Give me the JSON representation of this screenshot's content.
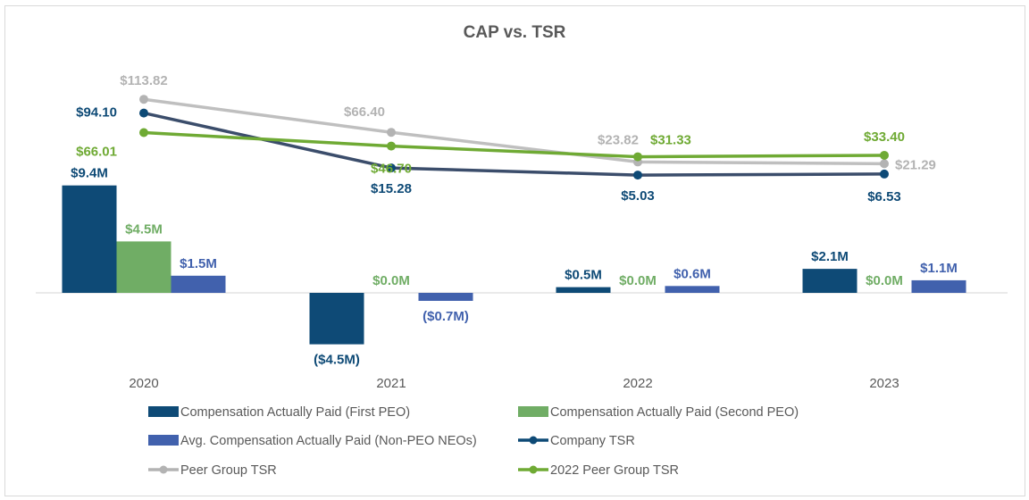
{
  "chart_data": {
    "type": "bar",
    "title": "CAP vs. TSR",
    "categories": [
      "2020",
      "2021",
      "2022",
      "2023"
    ],
    "xlabel": "",
    "ylabel": "",
    "grid": false,
    "legend_position": "bottom",
    "bar_series": [
      {
        "name": "Compensation Actually Paid (First PEO)",
        "color": "#0e4a76",
        "values": [
          9.4,
          -4.5,
          0.5,
          2.1
        ],
        "labels": [
          "$9.4M",
          "($4.5M)",
          "$0.5M",
          "$2.1M"
        ],
        "units": "$M"
      },
      {
        "name": "Compensation Actually Paid (Second PEO)",
        "color": "#70ad65",
        "values": [
          4.5,
          0.0,
          0.0,
          0.0
        ],
        "labels": [
          "$4.5M",
          "$0.0M",
          "$0.0M",
          "$0.0M"
        ],
        "units": "$M"
      },
      {
        "name": "Avg. Compensation Actually Paid (Non-PEO NEOs)",
        "color": "#4161ad",
        "values": [
          1.5,
          -0.7,
          0.6,
          1.1
        ],
        "labels": [
          "$1.5M",
          "($0.7M)",
          "$0.6M",
          "$1.1M"
        ],
        "units": "$M"
      }
    ],
    "line_series": [
      {
        "name": "Company TSR",
        "color": "#0e4a76",
        "line_color": "#3b4d6b",
        "values": [
          94.1,
          15.28,
          5.03,
          6.53
        ],
        "labels": [
          "$94.10",
          "$15.28",
          "$5.03",
          "$6.53"
        ]
      },
      {
        "name": "Peer Group TSR",
        "color": "#b3b3b3",
        "line_color": "#bfbfbf",
        "values": [
          113.82,
          66.4,
          23.82,
          21.29
        ],
        "labels": [
          "$113.82",
          "$66.40",
          "$23.82",
          "$21.29"
        ]
      },
      {
        "name": "2022 Peer Group TSR",
        "color": "#6faa34",
        "line_color": "#6faa34",
        "values": [
          66.01,
          46.7,
          31.33,
          33.4
        ],
        "labels": [
          "$66.01",
          "$46.70",
          "$31.33",
          "$33.40"
        ]
      }
    ],
    "legend": [
      {
        "name": "Compensation Actually Paid (First PEO)",
        "kind": "bar",
        "color": "#0e4a76"
      },
      {
        "name": "Compensation Actually Paid (Second PEO)",
        "kind": "bar",
        "color": "#70ad65"
      },
      {
        "name": "Avg. Compensation Actually Paid (Non-PEO NEOs)",
        "kind": "bar",
        "color": "#4161ad"
      },
      {
        "name": "Company TSR",
        "kind": "line",
        "color": "#0e4a76"
      },
      {
        "name": "Peer Group TSR",
        "kind": "line",
        "color": "#b3b3b3"
      },
      {
        "name": "2022 Peer Group TSR",
        "kind": "line",
        "color": "#6faa34"
      }
    ]
  }
}
